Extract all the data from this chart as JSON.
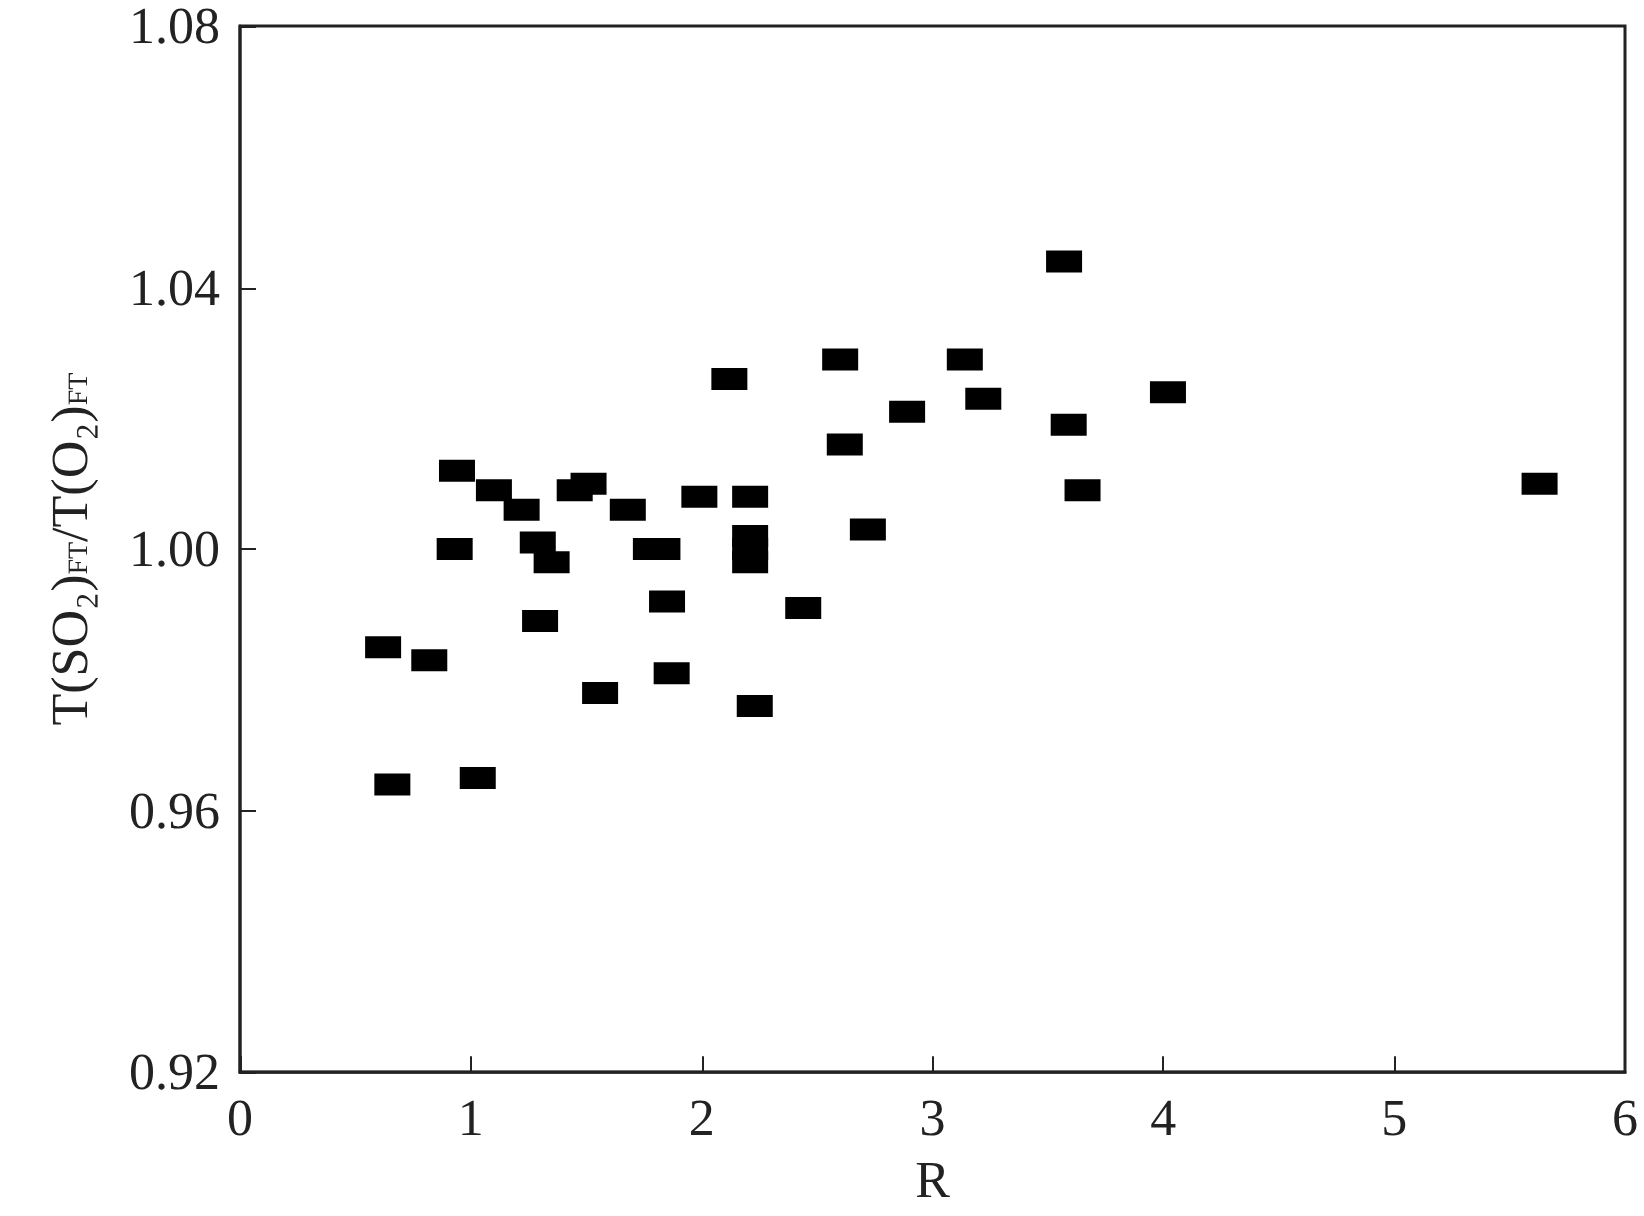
{
  "chart_data": {
    "type": "scatter",
    "xlabel": "R",
    "ylabel": "T(SO₂)$_{FT}$/T(O₂)$_{FT}$",
    "marker": "square",
    "grid": false,
    "xlim": [
      0,
      6
    ],
    "xticks": [
      0,
      1,
      2,
      3,
      4,
      5,
      6
    ],
    "ylim": [
      0.92,
      1.08
    ],
    "yticks": [
      {
        "value": 0.92,
        "label": "0.92"
      },
      {
        "value": 0.96,
        "label": "0.96"
      },
      {
        "value": 1.0,
        "label": "1.00"
      },
      {
        "value": 1.04,
        "label": "1.04"
      },
      {
        "value": 1.08,
        "label": "1.08"
      }
    ],
    "series": [
      {
        "color": "#000000",
        "x": [
          0.62,
          0.66,
          0.82,
          0.93,
          0.94,
          1.03,
          1.1,
          1.22,
          1.29,
          1.3,
          1.35,
          1.45,
          1.51,
          1.56,
          1.68,
          1.78,
          1.83,
          1.85,
          1.87,
          1.99,
          2.12,
          2.21,
          2.21,
          2.21,
          2.21,
          2.23,
          2.44,
          2.6,
          2.62,
          2.72,
          2.89,
          3.14,
          3.22,
          3.57,
          3.59,
          3.65,
          4.02,
          5.63
        ],
        "values": [
          0.985,
          0.964,
          0.983,
          1.0,
          1.012,
          0.965,
          1.009,
          1.006,
          1.001,
          0.989,
          0.998,
          1.009,
          1.01,
          0.978,
          1.006,
          1.0,
          1.0,
          0.992,
          0.981,
          1.008,
          1.026,
          1.008,
          1.002,
          1.0,
          0.998,
          0.976,
          0.991,
          1.029,
          1.016,
          1.003,
          1.021,
          1.029,
          1.023,
          1.044,
          1.019,
          1.009,
          1.024,
          1.01
        ]
      }
    ]
  }
}
